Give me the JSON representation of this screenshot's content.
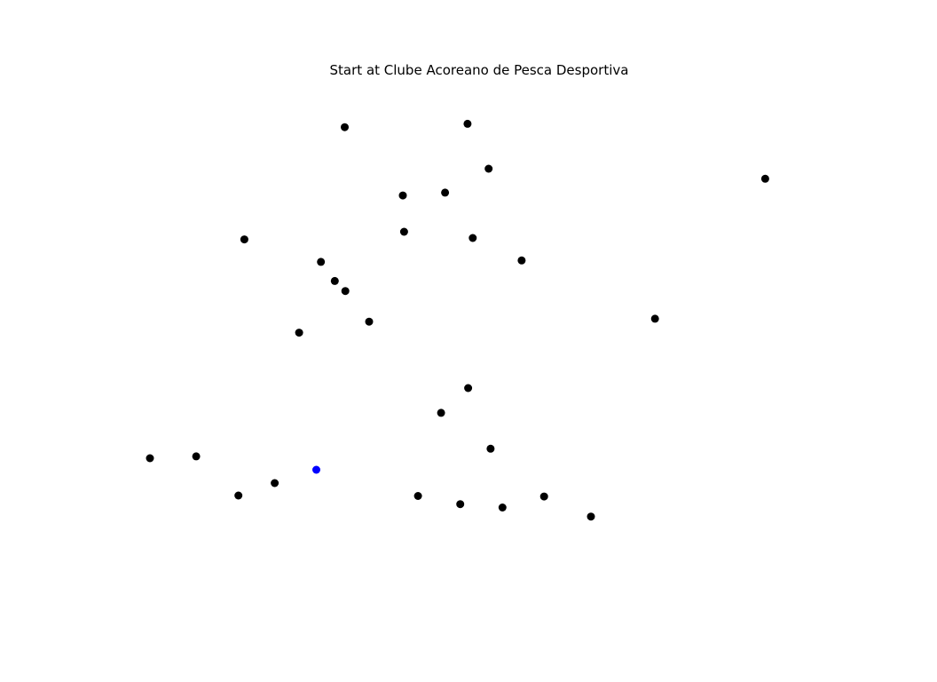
{
  "chart_data": {
    "type": "scatter",
    "title": "Start at Clube Acoreano de Pesca Desportiva",
    "xlabel": "",
    "ylabel": "",
    "axes_visible": false,
    "grid": false,
    "xlim": [
      0,
      1
    ],
    "ylim": [
      0,
      1
    ],
    "series": [
      {
        "color": "#000000",
        "points": [
          {
            "x": 0.295,
            "y": 0.955
          },
          {
            "x": 0.481,
            "y": 0.962
          },
          {
            "x": 0.513,
            "y": 0.868
          },
          {
            "x": 0.932,
            "y": 0.847
          },
          {
            "x": 0.383,
            "y": 0.812
          },
          {
            "x": 0.447,
            "y": 0.818
          },
          {
            "x": 0.143,
            "y": 0.72
          },
          {
            "x": 0.385,
            "y": 0.736
          },
          {
            "x": 0.489,
            "y": 0.723
          },
          {
            "x": 0.259,
            "y": 0.673
          },
          {
            "x": 0.28,
            "y": 0.633
          },
          {
            "x": 0.296,
            "y": 0.612
          },
          {
            "x": 0.563,
            "y": 0.676
          },
          {
            "x": 0.765,
            "y": 0.554
          },
          {
            "x": 0.332,
            "y": 0.548
          },
          {
            "x": 0.226,
            "y": 0.525
          },
          {
            "x": 0.482,
            "y": 0.409
          },
          {
            "x": 0.441,
            "y": 0.357
          },
          {
            "x": 0.516,
            "y": 0.282
          },
          {
            "x": 0.0,
            "y": 0.262
          },
          {
            "x": 0.07,
            "y": 0.266
          },
          {
            "x": 0.189,
            "y": 0.21
          },
          {
            "x": 0.134,
            "y": 0.184
          },
          {
            "x": 0.406,
            "y": 0.183
          },
          {
            "x": 0.47,
            "y": 0.166
          },
          {
            "x": 0.534,
            "y": 0.159
          },
          {
            "x": 0.597,
            "y": 0.182
          },
          {
            "x": 0.668,
            "y": 0.14
          }
        ]
      },
      {
        "color": "#0000ff",
        "highlight": "start",
        "points": [
          {
            "x": 0.252,
            "y": 0.238
          }
        ]
      }
    ]
  }
}
